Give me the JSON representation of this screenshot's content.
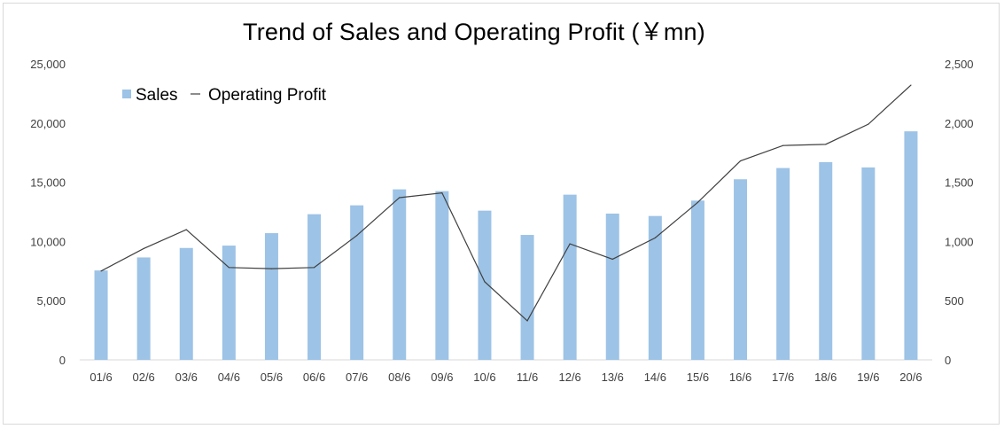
{
  "chart_data": {
    "type": "bar",
    "title": "Trend of Sales and Operating Profit (￥mn)",
    "categories": [
      "01/6",
      "02/6",
      "03/6",
      "04/6",
      "05/6",
      "06/6",
      "07/6",
      "08/6",
      "09/6",
      "10/6",
      "11/6",
      "12/6",
      "13/6",
      "14/6",
      "15/6",
      "16/6",
      "17/6",
      "18/6",
      "19/6",
      "20/6"
    ],
    "series": [
      {
        "name": "Sales",
        "type": "bar",
        "axis": "left",
        "color": "#9dc3e6",
        "values": [
          7550,
          8650,
          9450,
          9650,
          10700,
          12300,
          13050,
          14400,
          14250,
          12600,
          10550,
          13950,
          12350,
          12150,
          13450,
          15250,
          16200,
          16700,
          16250,
          19300
        ]
      },
      {
        "name": "Operating Profit",
        "type": "line",
        "axis": "right",
        "color": "#404040",
        "values": [
          750,
          940,
          1100,
          780,
          770,
          780,
          1050,
          1370,
          1410,
          660,
          330,
          980,
          850,
          1030,
          1330,
          1680,
          1810,
          1820,
          1990,
          2320
        ]
      }
    ],
    "ylim": [
      0,
      25000
    ],
    "y2lim": [
      0,
      2500
    ],
    "yticks": [
      "0",
      "5,000",
      "10,000",
      "15,000",
      "20,000",
      "25,000"
    ],
    "y2ticks": [
      "0",
      "500",
      "1,000",
      "1,500",
      "2,000",
      "2,500"
    ],
    "legend": "top-left",
    "grid": false
  }
}
